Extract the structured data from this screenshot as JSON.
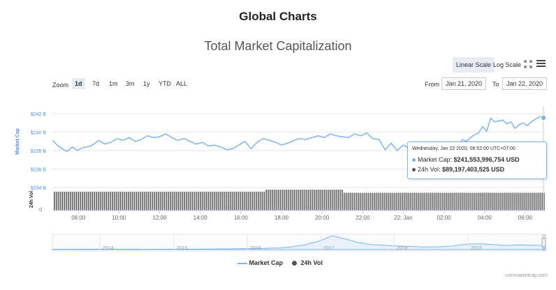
{
  "header": {
    "title": "Global Charts",
    "subtitle": "Total Market Capitalization"
  },
  "toolbar": {
    "linear_scale": "Linear Scale",
    "log_scale": "Log Scale",
    "active_scale": "Linear Scale"
  },
  "zoom": {
    "label": "Zoom",
    "options": [
      "1d",
      "7d",
      "1m",
      "3m",
      "1y",
      "YTD",
      "ALL"
    ],
    "selected": "1d"
  },
  "range": {
    "from_label": "From",
    "from_value": "Jan 21, 2020",
    "to_label": "To",
    "to_value": "Jan 22, 2020"
  },
  "tooltip": {
    "date": "Wednesday, Jan 22 2020, 06:52:00 UTC+07:00",
    "market_cap_label": "Market Cap:",
    "market_cap_value": "$241,553,996,754 USD",
    "vol_label": "24h Vol:",
    "vol_value": "$89,197,403,525 USD"
  },
  "legend": {
    "market_cap": "Market Cap",
    "vol": "24h Vol"
  },
  "credits": "coinmarketcap.com",
  "colors": {
    "market_cap": "#7cb5ec",
    "volume": "#555555",
    "axis_text": "#4a90e2"
  },
  "chart_data": {
    "type": "line",
    "title": "Total Market Capitalization",
    "ylabel": "Market Cap",
    "y2label": "24h Vol",
    "ylim": [
      234,
      243
    ],
    "yticks": [
      "$234 B",
      "$236 B",
      "$238 B",
      "$240 B",
      "$242 B"
    ],
    "ytick_values": [
      234,
      236,
      238,
      240,
      242
    ],
    "vol_ytick": "0",
    "xlim": [
      6.72,
      31.0
    ],
    "xticks": [
      "08:00",
      "10:00",
      "12:00",
      "14:00",
      "16:00",
      "18:00",
      "20:00",
      "22:00",
      "22. Jan",
      "02:00",
      "04:00",
      "06:00"
    ],
    "xtick_values": [
      8,
      10,
      12,
      14,
      16,
      18,
      20,
      22,
      24,
      26,
      28,
      30
    ],
    "grid": true,
    "legend": "bottom-center",
    "series": [
      {
        "name": "Market Cap",
        "unit": "billion USD",
        "x": [
          6.72,
          6.95,
          7.2,
          7.45,
          7.7,
          7.95,
          8.2,
          8.45,
          8.7,
          9.0,
          9.3,
          9.6,
          9.9,
          10.2,
          10.5,
          10.8,
          11.1,
          11.4,
          11.7,
          12.0,
          12.3,
          12.6,
          12.9,
          13.2,
          13.5,
          13.8,
          14.1,
          14.4,
          14.7,
          15.0,
          15.3,
          15.6,
          15.9,
          16.2,
          16.5,
          16.8,
          17.1,
          17.4,
          17.7,
          18.0,
          18.3,
          18.6,
          18.9,
          19.2,
          19.5,
          19.8,
          20.1,
          20.4,
          20.7,
          21.0,
          21.3,
          21.6,
          21.9,
          22.2,
          22.5,
          22.8,
          23.1,
          23.4,
          23.7,
          24.0,
          24.3,
          24.6,
          24.9,
          25.2,
          25.5,
          25.8,
          26.1,
          26.4,
          26.7,
          26.9,
          27.1,
          27.3,
          27.5,
          27.7,
          27.9,
          28.1,
          28.3,
          28.5,
          28.7,
          28.9,
          29.1,
          29.3,
          29.5,
          29.7,
          29.9,
          30.1,
          30.3,
          30.5,
          30.75,
          30.9
        ],
        "values": [
          239.1,
          238.6,
          238.2,
          237.9,
          238.4,
          238.0,
          238.3,
          238.4,
          238.6,
          239.1,
          238.7,
          238.9,
          239.3,
          239.1,
          239.4,
          239.0,
          239.2,
          239.6,
          239.4,
          239.5,
          239.8,
          239.4,
          239.1,
          239.3,
          239.0,
          238.7,
          238.9,
          238.5,
          238.6,
          238.4,
          238.1,
          238.2,
          238.6,
          239.0,
          238.2,
          238.9,
          239.3,
          239.1,
          238.9,
          238.6,
          238.8,
          239.1,
          239.3,
          239.2,
          239.4,
          239.6,
          239.4,
          239.8,
          239.6,
          239.5,
          239.4,
          239.8,
          239.6,
          239.9,
          239.3,
          239.2,
          238.1,
          238.8,
          238.0,
          238.6,
          238.2,
          238.5,
          238.3,
          238.6,
          238.7,
          238.5,
          238.4,
          238.6,
          238.4,
          239.2,
          239.0,
          239.4,
          239.7,
          239.9,
          240.6,
          240.1,
          241.5,
          241.1,
          241.2,
          241.3,
          240.9,
          241.1,
          240.4,
          240.8,
          241.0,
          240.7,
          241.1,
          241.4,
          241.7,
          241.55
        ]
      },
      {
        "name": "24h Vol",
        "unit": "relative",
        "values": [
          0.9,
          0.9,
          0.9,
          0.9,
          0.9,
          0.9,
          0.9,
          0.9,
          0.9,
          0.9,
          0.9,
          0.9,
          0.9,
          0.9,
          0.9,
          0.9,
          0.9,
          0.9,
          0.9,
          0.9,
          0.9,
          0.9,
          0.9,
          0.9,
          0.9,
          0.9,
          0.9,
          0.9,
          0.9,
          0.9,
          0.9,
          0.9,
          0.9,
          0.9,
          0.9,
          0.9,
          0.9,
          0.9,
          0.9,
          0.9,
          0.9,
          0.9,
          0.9,
          0.9,
          0.9,
          0.9,
          0.9,
          0.9,
          0.9,
          0.9,
          0.9,
          0.9,
          0.9,
          0.9,
          0.9,
          0.9,
          0.9,
          0.9,
          0.9,
          0.9,
          0.9,
          0.9,
          0.9,
          0.9,
          0.9,
          0.9,
          0.9,
          0.9,
          0.9,
          0.9,
          0.9,
          0.9,
          0.9,
          0.9,
          0.9,
          0.9,
          0.9,
          0.9,
          0.9,
          0.9,
          0.9,
          0.9,
          0.9,
          0.9,
          0.9,
          0.9,
          0.9,
          0.9,
          0.9,
          0.9,
          0.9,
          0.9,
          0.9,
          0.9,
          0.9,
          0.9,
          0.9,
          0.9,
          0.9,
          0.9,
          0.9,
          0.9,
          0.9,
          0.9,
          0.9,
          0.9,
          1.0,
          1.0,
          1.0,
          1.0,
          1.0,
          1.0,
          1.0,
          1.0,
          1.0,
          1.0,
          1.0,
          1.0,
          1.0,
          1.0,
          1.0,
          1.0,
          1.0,
          1.0,
          1.0,
          1.0,
          1.0,
          1.0,
          1.0,
          1.0,
          1.0,
          1.0,
          1.0,
          1.0,
          1.0,
          1.0,
          1.0,
          1.0,
          1.0,
          1.0,
          1.0,
          1.0,
          1.0,
          1.0,
          1.0,
          0.85,
          0.85,
          0.85,
          0.85,
          0.85,
          0.85,
          0.85,
          0.85,
          0.85,
          0.85,
          0.85,
          0.85,
          0.85,
          0.85,
          0.85,
          0.85,
          0.85,
          0.85,
          0.85,
          0.85,
          0.85,
          0.85,
          0.85,
          0.85,
          0.85,
          0.85,
          0.85,
          0.85,
          0.85,
          0.85,
          0.85,
          0.85,
          0.85,
          0.85,
          0.85,
          0.85,
          0.85,
          0.85,
          0.85,
          0.85,
          0.85,
          0.85,
          0.85,
          0.85,
          0.85,
          0.85,
          0.85,
          0.85,
          0.85,
          0.85,
          0.85,
          0.85,
          0.85,
          0.85,
          0.85,
          0.85,
          0.85,
          0.85,
          0.85,
          0.85,
          0.85,
          0.85,
          0.85,
          0.85,
          0.85,
          0.85,
          0.85,
          0.85,
          0.85,
          0.85,
          0.85,
          0.85,
          0.85,
          0.85,
          0.85,
          0.85,
          0.85,
          0.85,
          0.85,
          0.85,
          0.85,
          0.85,
          0.85,
          0.85,
          0.85,
          0.85,
          0.85,
          0.85,
          0.85,
          0.85,
          0.85,
          0.85,
          0.85,
          0.85,
          0.85,
          0.85,
          0.85,
          0.85,
          0.85,
          0.85,
          0.85
        ]
      }
    ],
    "navigator": {
      "years": [
        "2014",
        "2015",
        "2016",
        "2017",
        "2018",
        "2019"
      ]
    }
  }
}
